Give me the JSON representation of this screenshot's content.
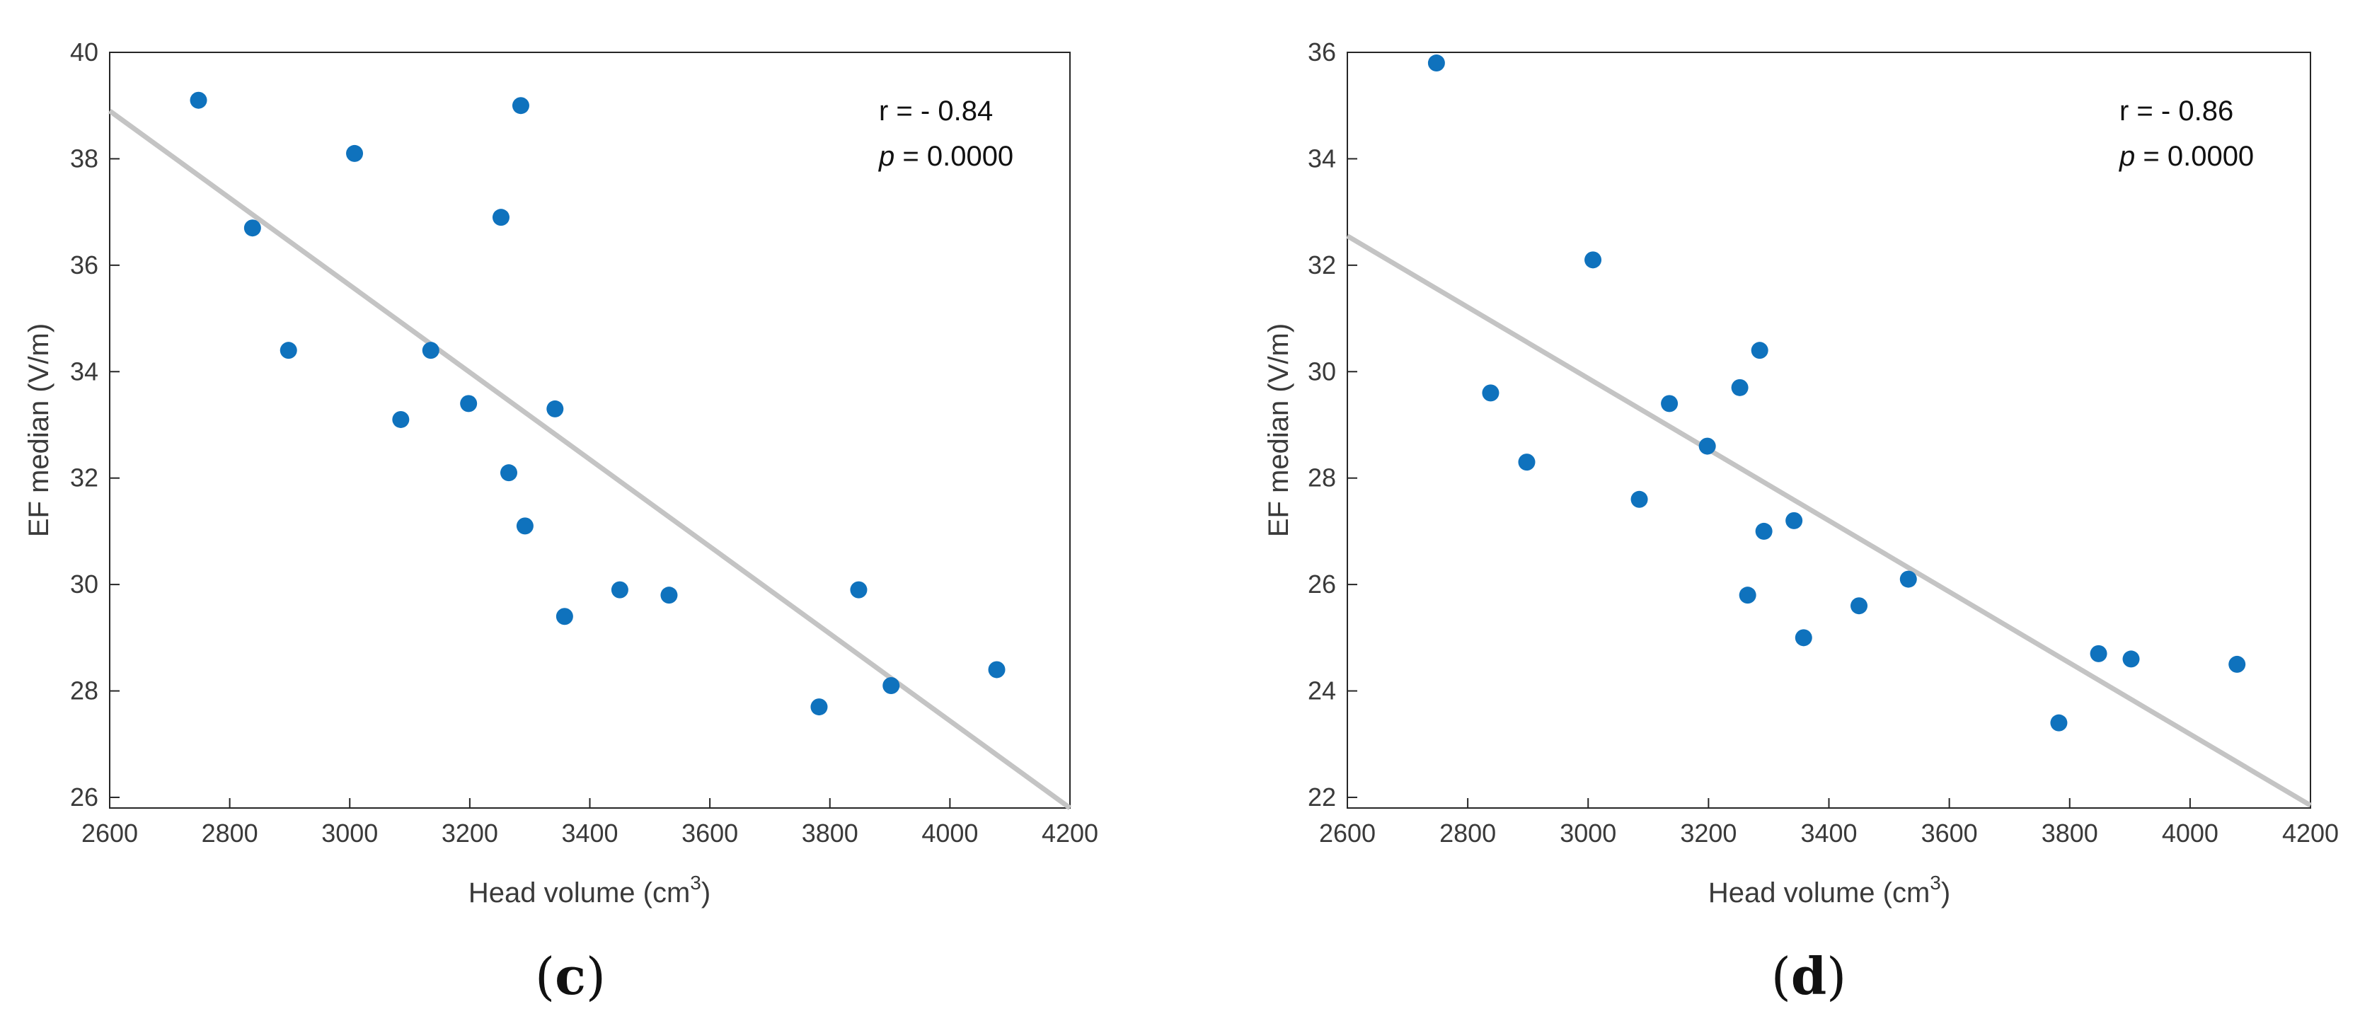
{
  "colors": {
    "point": "#0f72bd",
    "fit": "#c4c4c4",
    "axis": "#262626"
  },
  "chart_data": [
    {
      "type": "scatter",
      "panel_label": "c",
      "xlabel": "Head volume (cm",
      "xlabel_sup": "3",
      "xlabel_end": ")",
      "ylabel": "EF median (V/m)",
      "xlim": [
        2600,
        4200
      ],
      "ylim": [
        25.8,
        40
      ],
      "xticks": [
        2600,
        2800,
        3000,
        3200,
        3400,
        3600,
        3800,
        4000,
        4200
      ],
      "yticks": [
        26,
        28,
        30,
        32,
        34,
        36,
        38,
        40
      ],
      "points": [
        {
          "x": 2748,
          "y": 39.1
        },
        {
          "x": 2838,
          "y": 36.7
        },
        {
          "x": 2898,
          "y": 34.4
        },
        {
          "x": 3008,
          "y": 38.1
        },
        {
          "x": 3085,
          "y": 33.1
        },
        {
          "x": 3135,
          "y": 34.4
        },
        {
          "x": 3198,
          "y": 33.4
        },
        {
          "x": 3252,
          "y": 36.9
        },
        {
          "x": 3265,
          "y": 32.1
        },
        {
          "x": 3285,
          "y": 39.0
        },
        {
          "x": 3292,
          "y": 31.1
        },
        {
          "x": 3342,
          "y": 33.3
        },
        {
          "x": 3358,
          "y": 29.4
        },
        {
          "x": 3450,
          "y": 29.9
        },
        {
          "x": 3532,
          "y": 29.8
        },
        {
          "x": 3782,
          "y": 27.7
        },
        {
          "x": 3848,
          "y": 29.9
        },
        {
          "x": 3902,
          "y": 28.1
        },
        {
          "x": 4078,
          "y": 28.4
        }
      ],
      "fit_line": {
        "x": [
          2600,
          4200
        ],
        "y": [
          38.9,
          25.8
        ]
      },
      "annotation": {
        "r_text": "r = - 0.84",
        "p_symbol": "p",
        "p_rest": " = 0.0000"
      }
    },
    {
      "type": "scatter",
      "panel_label": "d",
      "xlabel": "Head volume (cm",
      "xlabel_sup": "3",
      "xlabel_end": ")",
      "ylabel": "EF median (V/m)",
      "xlim": [
        2600,
        4200
      ],
      "ylim": [
        21.8,
        36
      ],
      "xticks": [
        2600,
        2800,
        3000,
        3200,
        3400,
        3600,
        3800,
        4000,
        4200
      ],
      "yticks": [
        22,
        24,
        26,
        28,
        30,
        32,
        34,
        36
      ],
      "points": [
        {
          "x": 2748,
          "y": 35.8
        },
        {
          "x": 2838,
          "y": 29.6
        },
        {
          "x": 2898,
          "y": 28.3
        },
        {
          "x": 3008,
          "y": 32.1
        },
        {
          "x": 3085,
          "y": 27.6
        },
        {
          "x": 3135,
          "y": 29.4
        },
        {
          "x": 3198,
          "y": 28.6
        },
        {
          "x": 3252,
          "y": 29.7
        },
        {
          "x": 3265,
          "y": 25.8
        },
        {
          "x": 3285,
          "y": 30.4
        },
        {
          "x": 3292,
          "y": 27.0
        },
        {
          "x": 3342,
          "y": 27.2
        },
        {
          "x": 3358,
          "y": 25.0
        },
        {
          "x": 3450,
          "y": 25.6
        },
        {
          "x": 3532,
          "y": 26.1
        },
        {
          "x": 3782,
          "y": 23.4
        },
        {
          "x": 3848,
          "y": 24.7
        },
        {
          "x": 3902,
          "y": 24.6
        },
        {
          "x": 4078,
          "y": 24.5
        }
      ],
      "fit_line": {
        "x": [
          2600,
          4200
        ],
        "y": [
          32.55,
          21.85
        ]
      },
      "annotation": {
        "r_text": "r = - 0.86",
        "p_symbol": "p",
        "p_rest": " = 0.0000"
      }
    }
  ]
}
